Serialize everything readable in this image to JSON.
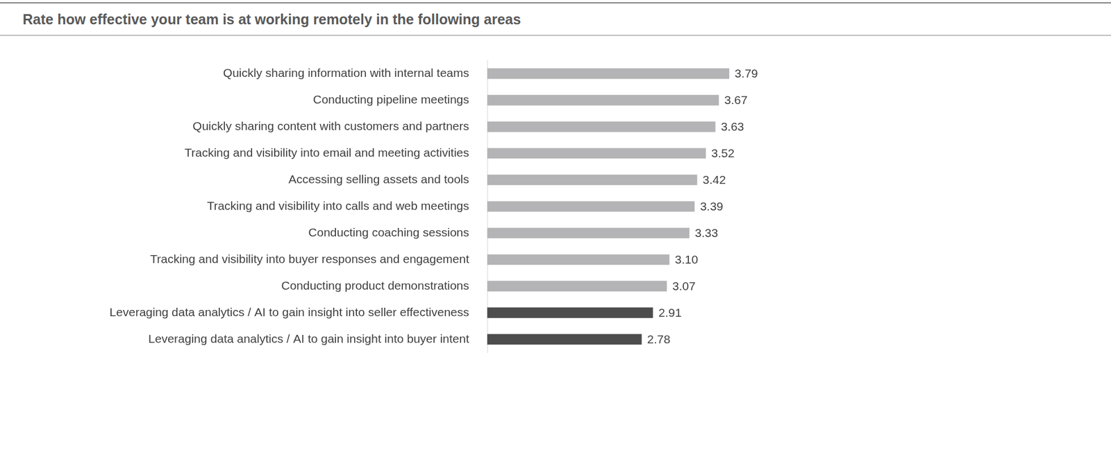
{
  "chart_data": {
    "type": "bar",
    "orientation": "horizontal",
    "title": "Rate how effective your team is at working remotely in the following areas",
    "categories": [
      "Quickly sharing information with internal teams",
      "Conducting pipeline meetings",
      "Quickly sharing content with customers and partners",
      "Tracking and visibility into email and meeting activities",
      "Accessing selling assets and tools",
      "Tracking and visibility into calls and web meetings",
      "Conducting coaching sessions",
      "Tracking and visibility into buyer responses and engagement",
      "Conducting product demonstrations",
      "Leveraging data analytics / AI to gain insight into seller effectiveness",
      "Leveraging data analytics / AI to gain insight into buyer intent"
    ],
    "values": [
      3.79,
      3.67,
      3.63,
      3.52,
      3.42,
      3.39,
      3.33,
      3.1,
      3.07,
      2.91,
      2.78
    ],
    "value_labels": [
      "3.79",
      "3.67",
      "3.63",
      "3.52",
      "3.42",
      "3.39",
      "3.33",
      "3.10",
      "3.07",
      "2.91",
      "2.78"
    ],
    "colors": [
      "#b4b4b6",
      "#b4b4b6",
      "#b4b4b6",
      "#b4b4b6",
      "#b4b4b6",
      "#b4b4b6",
      "#b4b4b6",
      "#b4b4b6",
      "#b4b4b6",
      "#4d4d4d",
      "#4d4d4d"
    ],
    "xlim": [
      1,
      5
    ],
    "xticks": [
      1,
      2,
      3,
      4,
      5
    ],
    "grid": false,
    "data_labels": true,
    "tick_labels": "y"
  }
}
